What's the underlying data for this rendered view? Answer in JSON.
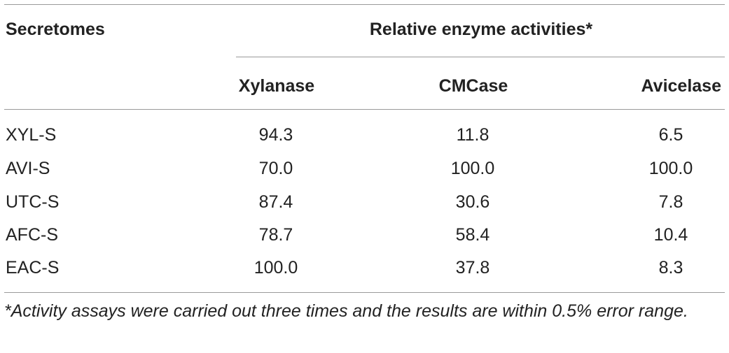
{
  "table": {
    "header": {
      "row_header": "Secretomes",
      "group_header": "Relative enzyme activities*",
      "columns": [
        "Xylanase",
        "CMCase",
        "Avicelase"
      ]
    },
    "rows": [
      {
        "label": "XYL-S",
        "values": [
          "94.3",
          "11.8",
          "6.5"
        ]
      },
      {
        "label": "AVI-S",
        "values": [
          "70.0",
          "100.0",
          "100.0"
        ]
      },
      {
        "label": "UTC-S",
        "values": [
          "87.4",
          "30.6",
          "7.8"
        ]
      },
      {
        "label": "AFC-S",
        "values": [
          "78.7",
          "58.4",
          "10.4"
        ]
      },
      {
        "label": "EAC-S",
        "values": [
          "100.0",
          "37.8",
          "8.3"
        ]
      }
    ],
    "footnote": "*Activity assays were carried out three times and the results are within 0.5% error range."
  }
}
